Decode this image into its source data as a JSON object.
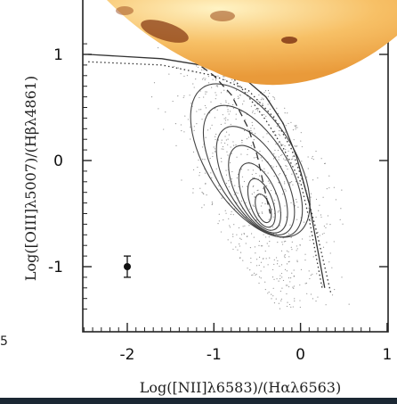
{
  "chart_data": {
    "type": "scatter",
    "xlabel": "Log([NII]λ6583)/(Hαλ6563)",
    "ylabel": "Log([OIII]λ5007)/(Hβλ4861)",
    "xlim": [
      -2.5,
      1.0
    ],
    "ylim": [
      -1.5,
      1.2
    ],
    "x_ticks": [
      -2,
      -1,
      0,
      1
    ],
    "x_tick_labels": [
      "-2",
      "-1",
      "0",
      "1"
    ],
    "y_ticks": [
      1,
      0,
      -1
    ],
    "y_tick_labels": [
      "1",
      "0",
      "-1"
    ],
    "grid": false,
    "error_bar_point": {
      "x": -2.0,
      "y": -1.0,
      "yerr": 0.1
    },
    "curves": [
      {
        "style": "solid",
        "x": [
          -2.45,
          -1.6,
          -1.0,
          -0.6,
          -0.4,
          -0.2,
          -0.05,
          0.1,
          0.2,
          0.28
        ],
        "y": [
          1.0,
          0.96,
          0.88,
          0.74,
          0.6,
          0.35,
          0.05,
          -0.4,
          -0.85,
          -1.2
        ]
      },
      {
        "style": "dashed",
        "x": [
          -1.25,
          -1.0,
          -0.8,
          -0.6,
          -0.5,
          -0.42,
          -0.35
        ],
        "y": [
          0.95,
          0.8,
          0.62,
          0.3,
          0.05,
          -0.25,
          -0.5
        ]
      },
      {
        "style": "dotted",
        "x": [
          -2.45,
          -1.6,
          -1.0,
          -0.6,
          -0.3,
          -0.1,
          0.05,
          0.18,
          0.28,
          0.35
        ],
        "y": [
          0.93,
          0.9,
          0.8,
          0.66,
          0.4,
          0.1,
          -0.25,
          -0.65,
          -1.0,
          -1.25
        ]
      },
      {
        "style": "dotted",
        "x": [
          -0.85,
          -0.6,
          -0.4,
          -0.2,
          0.0,
          0.1,
          0.18,
          0.25
        ],
        "y": [
          0.85,
          0.6,
          0.38,
          0.12,
          -0.2,
          -0.55,
          -0.9,
          -1.2
        ]
      }
    ],
    "contours": [
      {
        "cx": -0.43,
        "cy": -0.45,
        "rx": 0.08,
        "ry": 0.14,
        "tilt": -18
      },
      {
        "cx": -0.45,
        "cy": -0.4,
        "rx": 0.13,
        "ry": 0.24,
        "tilt": -20
      },
      {
        "cx": -0.47,
        "cy": -0.34,
        "rx": 0.19,
        "ry": 0.34,
        "tilt": -24
      },
      {
        "cx": -0.49,
        "cy": -0.27,
        "rx": 0.26,
        "ry": 0.45,
        "tilt": -27
      },
      {
        "cx": -0.52,
        "cy": -0.19,
        "rx": 0.33,
        "ry": 0.57,
        "tilt": -30
      },
      {
        "cx": -0.55,
        "cy": -0.1,
        "rx": 0.41,
        "ry": 0.7,
        "tilt": -32
      },
      {
        "cx": -0.58,
        "cy": 0.0,
        "rx": 0.5,
        "ry": 0.82,
        "tilt": -33
      }
    ]
  }
}
